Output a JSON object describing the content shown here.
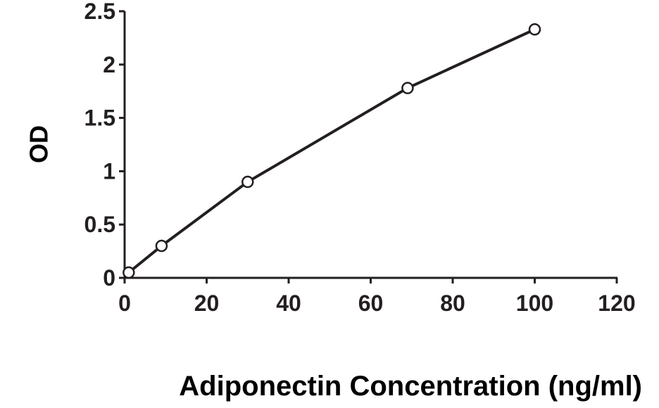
{
  "chart_data": {
    "type": "line",
    "title": "",
    "xlabel": "Adiponectin Concentration (ng/ml)",
    "ylabel": "OD",
    "xlim": [
      0,
      120
    ],
    "ylim": [
      0,
      2.5
    ],
    "xticks": [
      0,
      20,
      40,
      60,
      80,
      100,
      120
    ],
    "yticks": [
      0,
      0.5,
      1,
      1.5,
      2,
      2.5
    ],
    "xtick_labels": [
      "0",
      "20",
      "40",
      "60",
      "80",
      "100",
      "120"
    ],
    "ytick_labels": [
      "0",
      "0.5",
      "1",
      "1.5",
      "2",
      "2.5"
    ],
    "grid": false,
    "legend": "none",
    "series": [
      {
        "x": [
          1,
          9,
          30,
          69,
          100
        ],
        "y": [
          0.05,
          0.3,
          0.9,
          1.78,
          2.33
        ],
        "color": "#231f20",
        "marker": "open-circle"
      }
    ]
  }
}
